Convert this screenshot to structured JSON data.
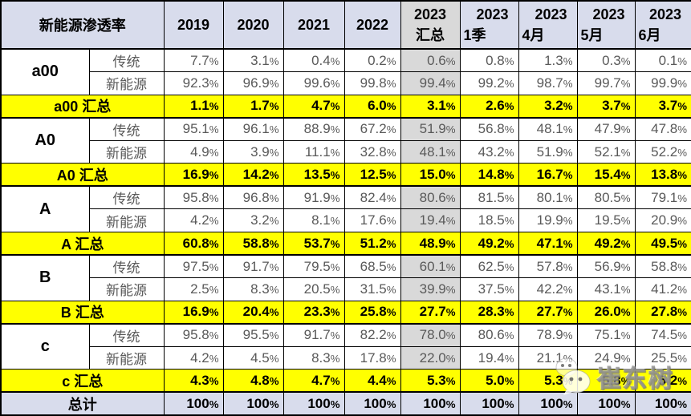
{
  "table": {
    "title": "新能源渗透率",
    "columns": [
      {
        "l1": "2019",
        "l2": "",
        "gray": false,
        "center": true
      },
      {
        "l1": "2020",
        "l2": "",
        "gray": false,
        "center": true
      },
      {
        "l1": "2021",
        "l2": "",
        "gray": false,
        "center": true
      },
      {
        "l1": "2022",
        "l2": "",
        "gray": false,
        "center": true
      },
      {
        "l1": "2023",
        "l2": "汇总",
        "gray": true,
        "center": true
      },
      {
        "l1": "2023",
        "l2": "1季",
        "gray": false,
        "center": false
      },
      {
        "l1": "2023",
        "l2": "4月",
        "gray": false,
        "center": false
      },
      {
        "l1": "2023",
        "l2": "5月",
        "gray": false,
        "center": false
      },
      {
        "l1": "2023",
        "l2": "6月",
        "gray": false,
        "center": false
      }
    ],
    "groups": [
      {
        "label": "a00",
        "rows": [
          {
            "type": "传统",
            "values": [
              "7.7%",
              "3.1%",
              "0.4%",
              "0.2%",
              "0.6%",
              "0.8%",
              "1.3%",
              "0.3%",
              "0.1%"
            ]
          },
          {
            "type": "新能源",
            "values": [
              "92.3%",
              "96.9%",
              "99.6%",
              "99.8%",
              "99.4%",
              "99.2%",
              "98.7%",
              "99.7%",
              "99.9%"
            ]
          }
        ],
        "summary": {
          "label": "a00 汇总",
          "values": [
            "1.1%",
            "1.7%",
            "4.7%",
            "6.0%",
            "3.1%",
            "2.6%",
            "3.2%",
            "3.7%",
            "3.7%"
          ]
        }
      },
      {
        "label": "A0",
        "rows": [
          {
            "type": "传统",
            "values": [
              "95.1%",
              "96.1%",
              "88.9%",
              "67.2%",
              "51.9%",
              "56.8%",
              "48.1%",
              "47.9%",
              "47.8%"
            ]
          },
          {
            "type": "新能源",
            "values": [
              "4.9%",
              "3.9%",
              "11.1%",
              "32.8%",
              "48.1%",
              "43.2%",
              "51.9%",
              "52.1%",
              "52.2%"
            ]
          }
        ],
        "summary": {
          "label": "A0 汇总",
          "values": [
            "16.9%",
            "14.2%",
            "13.5%",
            "12.5%",
            "15.0%",
            "14.8%",
            "16.7%",
            "15.4%",
            "13.8%"
          ]
        }
      },
      {
        "label": "A",
        "rows": [
          {
            "type": "传统",
            "values": [
              "95.8%",
              "96.8%",
              "91.9%",
              "82.4%",
              "80.6%",
              "81.5%",
              "80.1%",
              "80.5%",
              "79.1%"
            ]
          },
          {
            "type": "新能源",
            "values": [
              "4.2%",
              "3.2%",
              "8.1%",
              "17.6%",
              "19.4%",
              "18.5%",
              "19.9%",
              "19.5%",
              "20.9%"
            ]
          }
        ],
        "summary": {
          "label": "A 汇总",
          "values": [
            "60.8%",
            "58.8%",
            "53.7%",
            "51.2%",
            "48.9%",
            "49.2%",
            "47.1%",
            "49.2%",
            "49.5%"
          ]
        }
      },
      {
        "label": "B",
        "rows": [
          {
            "type": "传统",
            "values": [
              "97.5%",
              "91.7%",
              "79.5%",
              "68.5%",
              "60.1%",
              "62.5%",
              "57.8%",
              "56.9%",
              "58.8%"
            ]
          },
          {
            "type": "新能源",
            "values": [
              "2.5%",
              "8.3%",
              "20.5%",
              "31.5%",
              "39.9%",
              "37.5%",
              "42.2%",
              "43.1%",
              "41.2%"
            ]
          }
        ],
        "summary": {
          "label": "B 汇总",
          "values": [
            "16.9%",
            "20.4%",
            "23.3%",
            "25.8%",
            "27.7%",
            "28.3%",
            "27.7%",
            "26.0%",
            "27.8%"
          ]
        }
      },
      {
        "label": "c",
        "rows": [
          {
            "type": "传统",
            "values": [
              "95.8%",
              "95.5%",
              "91.7%",
              "82.2%",
              "78.0%",
              "80.6%",
              "78.9%",
              "75.1%",
              "74.5%"
            ]
          },
          {
            "type": "新能源",
            "values": [
              "4.2%",
              "4.5%",
              "8.3%",
              "17.8%",
              "22.0%",
              "19.4%",
              "21.1%",
              "24.9%",
              "25.5%"
            ]
          }
        ],
        "summary": {
          "label": "c 汇总",
          "values": [
            "4.3%",
            "4.8%",
            "4.7%",
            "4.4%",
            "5.3%",
            "5.0%",
            "5.3%",
            "5.8%",
            "5.2%"
          ]
        }
      }
    ],
    "total": {
      "label": "总计",
      "values": [
        "100%",
        "100%",
        "100%",
        "100%",
        "100%",
        "100%",
        "100%",
        "100%",
        "100%"
      ]
    }
  },
  "watermark": {
    "text": "崔东树",
    "icon": "wechat-icon"
  },
  "colors": {
    "header_bg": "#d8dcec",
    "gray_col_bg": "#d9d9d9",
    "summary_bg": "#ffff00",
    "total_bg": "#d8dcec",
    "border": "#000000",
    "muted_text": "#595959",
    "text": "#000000"
  }
}
